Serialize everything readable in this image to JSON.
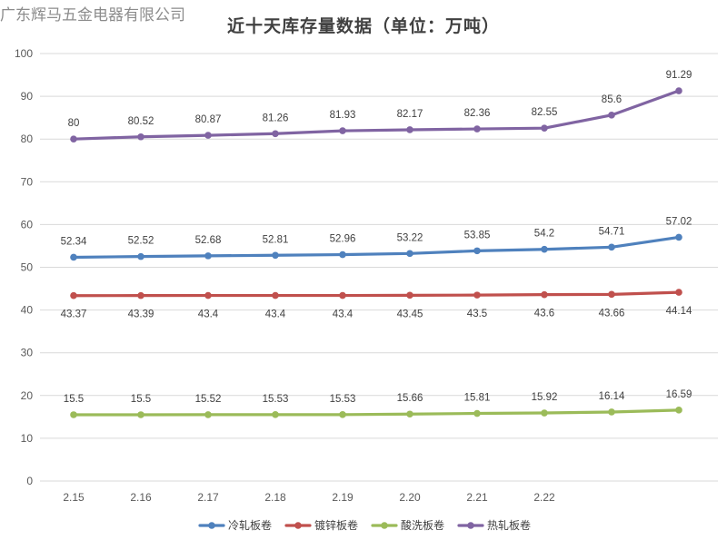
{
  "watermark": "广东辉马五金电器有限公司",
  "chart_data": {
    "type": "line",
    "title": "近十天库存量数据（单位：万吨）",
    "xlabel": "",
    "ylabel": "",
    "categories": [
      "2.15",
      "2.16",
      "2.17",
      "2.18",
      "2.19",
      "2.20",
      "2.21",
      "2.22",
      "",
      ""
    ],
    "ylim": [
      0,
      100
    ],
    "yticks": [
      0,
      10,
      20,
      30,
      40,
      50,
      60,
      70,
      80,
      90,
      100
    ],
    "grid": true,
    "legend_position": "bottom",
    "series": [
      {
        "name": "冷轧板卷",
        "color": "#4f81bd",
        "label_position": "above",
        "values": [
          52.34,
          52.52,
          52.68,
          52.81,
          52.96,
          53.22,
          53.85,
          54.2,
          54.71,
          57.02
        ]
      },
      {
        "name": "镀锌板卷",
        "color": "#c0504d",
        "label_position": "below",
        "values": [
          43.37,
          43.39,
          43.4,
          43.4,
          43.4,
          43.45,
          43.5,
          43.6,
          43.66,
          44.14
        ]
      },
      {
        "name": "酸洗板卷",
        "color": "#9bbb59",
        "label_position": "above",
        "values": [
          15.5,
          15.5,
          15.52,
          15.53,
          15.53,
          15.66,
          15.81,
          15.92,
          16.14,
          16.59
        ]
      },
      {
        "name": "热轧板卷",
        "color": "#8064a2",
        "label_position": "above",
        "values": [
          80,
          80.52,
          80.87,
          81.26,
          81.93,
          82.17,
          82.36,
          82.55,
          85.6,
          91.29
        ]
      }
    ]
  }
}
